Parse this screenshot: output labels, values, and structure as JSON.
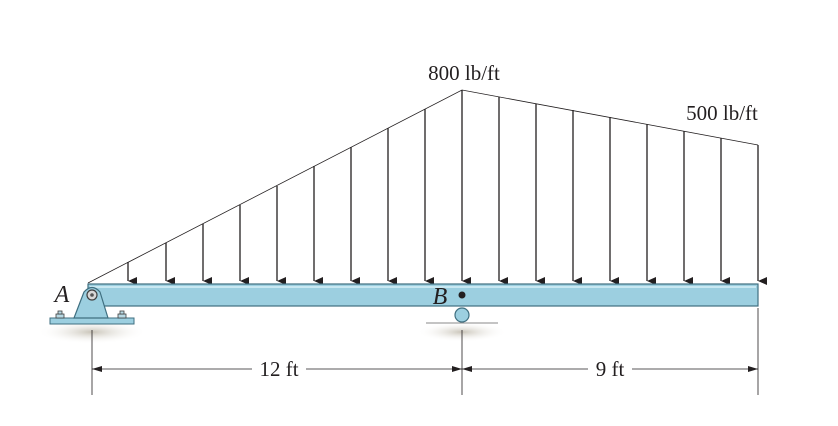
{
  "loads": {
    "peak_label": "800 lb/ft",
    "end_label": "500 lb/ft"
  },
  "points": {
    "a": "A",
    "b": "B"
  },
  "dimensions": {
    "left": "12 ft",
    "right": "9 ft"
  }
}
